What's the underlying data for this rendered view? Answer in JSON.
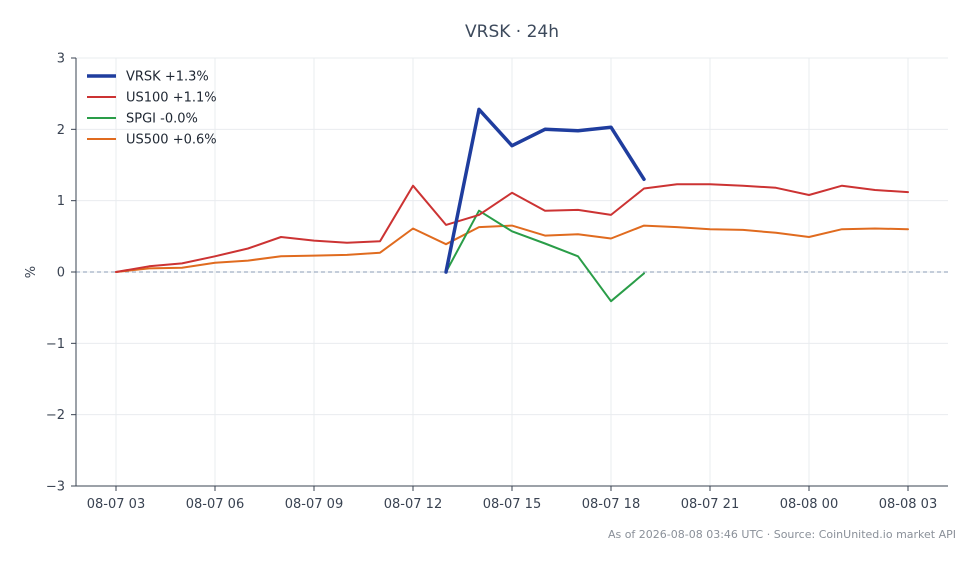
{
  "chart_data": {
    "type": "line",
    "title": "VRSK · 24h",
    "ylabel": "%",
    "xlabel": "",
    "ylim": [
      -3,
      3
    ],
    "yticks": [
      3,
      2,
      1,
      0,
      -1,
      -2,
      -3
    ],
    "ytick_labels": [
      "3",
      "2",
      "1",
      "0",
      "−1",
      "−2",
      "−3"
    ],
    "x": [
      "08-07 03",
      "08-07 04",
      "08-07 05",
      "08-07 06",
      "08-07 07",
      "08-07 08",
      "08-07 09",
      "08-07 10",
      "08-07 11",
      "08-07 12",
      "08-07 13",
      "08-07 14",
      "08-07 15",
      "08-07 16",
      "08-07 17",
      "08-07 18",
      "08-07 19",
      "08-07 20",
      "08-07 21",
      "08-07 22",
      "08-07 23",
      "08-08 00",
      "08-08 01",
      "08-08 02",
      "08-08 03"
    ],
    "xtick_labels": [
      "08-07 03",
      "08-07 06",
      "08-07 09",
      "08-07 12",
      "08-07 15",
      "08-07 18",
      "08-07 21",
      "08-08 00",
      "08-08 03"
    ],
    "grid": true,
    "legend_position": "top-left",
    "zero_line": true,
    "series": [
      {
        "name": "VRSK +1.3%",
        "color": "#1f3d9e",
        "width": 3.5,
        "values": [
          null,
          null,
          null,
          null,
          null,
          null,
          null,
          null,
          null,
          null,
          0.0,
          2.28,
          1.77,
          2.0,
          1.98,
          2.03,
          1.3,
          null,
          null,
          null,
          null,
          null,
          null,
          null,
          null
        ]
      },
      {
        "name": "US100 +1.1%",
        "color": "#cc3333",
        "width": 2,
        "values": [
          0.0,
          0.08,
          0.12,
          0.22,
          0.33,
          0.49,
          0.44,
          0.41,
          0.43,
          1.21,
          0.66,
          0.8,
          1.11,
          0.86,
          0.87,
          0.8,
          1.17,
          1.23,
          1.23,
          1.21,
          1.18,
          1.08,
          1.21,
          1.15,
          1.12
        ]
      },
      {
        "name": "SPGI -0.0%",
        "color": "#2a9d48",
        "width": 2,
        "values": [
          null,
          null,
          null,
          null,
          null,
          null,
          null,
          null,
          null,
          null,
          0.0,
          0.86,
          0.57,
          0.4,
          0.22,
          -0.41,
          -0.02,
          null,
          null,
          null,
          null,
          null,
          null,
          null,
          null
        ]
      },
      {
        "name": "US500 +0.6%",
        "color": "#e06b1f",
        "width": 2,
        "values": [
          0.0,
          0.05,
          0.06,
          0.13,
          0.16,
          0.22,
          0.23,
          0.24,
          0.27,
          0.61,
          0.39,
          0.63,
          0.65,
          0.51,
          0.53,
          0.47,
          0.65,
          0.63,
          0.6,
          0.59,
          0.55,
          0.49,
          0.6,
          0.61,
          0.6
        ]
      }
    ],
    "footer": "As of 2026-08-08 03:46 UTC · Source: CoinUnited.io market API"
  }
}
